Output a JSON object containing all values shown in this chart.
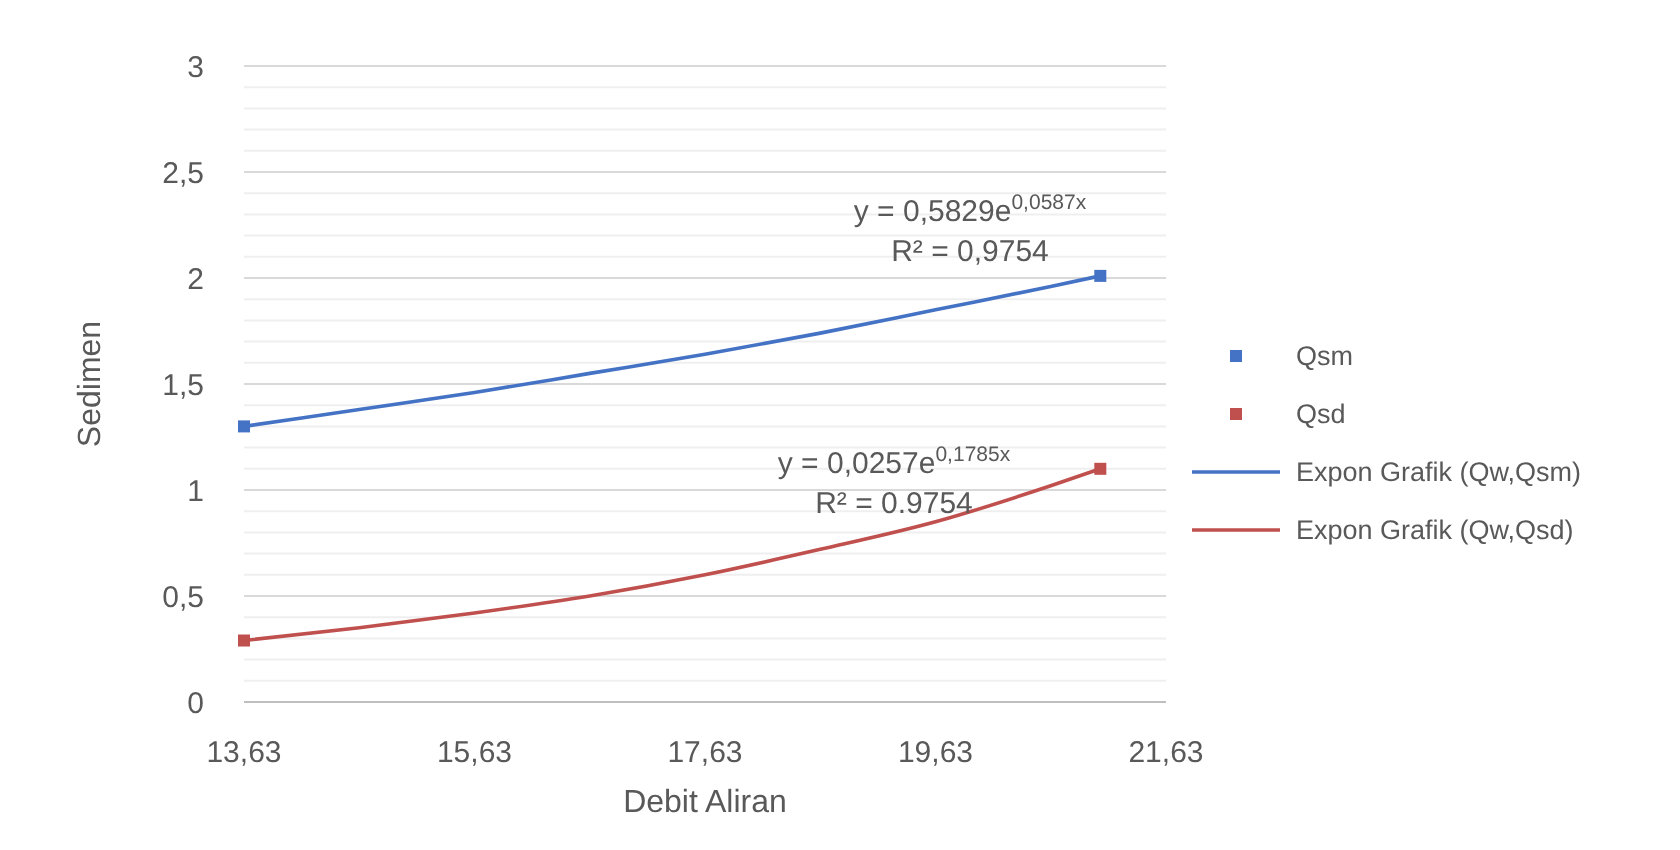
{
  "chart_data": {
    "type": "scatter",
    "xlabel": "Debit Aliran",
    "ylabel": "Sedimen",
    "xlim": [
      13.63,
      21.63
    ],
    "xticks": [
      {
        "value": 13.63,
        "label": "13,63"
      },
      {
        "value": 15.63,
        "label": "15,63"
      },
      {
        "value": 17.63,
        "label": "17,63"
      },
      {
        "value": 19.63,
        "label": "19,63"
      },
      {
        "value": 21.63,
        "label": "21,63"
      }
    ],
    "ylim": [
      0,
      3
    ],
    "yticks": [
      0,
      {
        "value": 0.1,
        "label": null
      },
      {
        "value": 0.2,
        "label": null
      },
      {
        "value": 0.3,
        "label": null
      },
      {
        "value": 0.4,
        "label": null
      },
      {
        "value": 0.5,
        "label": "0,5"
      },
      {
        "value": 0.6,
        "label": null
      },
      {
        "value": 0.7,
        "label": null
      },
      {
        "value": 0.8,
        "label": null
      },
      {
        "value": 0.9,
        "label": null
      },
      1,
      {
        "value": 1.1,
        "label": null
      },
      {
        "value": 1.2,
        "label": null
      },
      {
        "value": 1.3,
        "label": null
      },
      {
        "value": 1.4,
        "label": null
      },
      {
        "value": 1.5,
        "label": "1,5"
      },
      {
        "value": 1.6,
        "label": null
      },
      {
        "value": 1.7,
        "label": null
      },
      {
        "value": 1.8,
        "label": null
      },
      {
        "value": 1.9,
        "label": null
      },
      2,
      {
        "value": 2.1,
        "label": null
      },
      {
        "value": 2.2,
        "label": null
      },
      {
        "value": 2.3,
        "label": null
      },
      {
        "value": 2.4,
        "label": null
      },
      {
        "value": 2.5,
        "label": "2,5"
      },
      {
        "value": 2.6,
        "label": null
      },
      {
        "value": 2.7,
        "label": null
      },
      {
        "value": 2.8,
        "label": null
      },
      {
        "value": 2.9,
        "label": null
      },
      3
    ],
    "grid": "y",
    "legend": "right",
    "series": [
      {
        "name": "Qsm",
        "marker": "square",
        "color": "#4472c4",
        "x": [
          13.63,
          21.06
        ],
        "values": [
          1.3,
          2.01
        ]
      },
      {
        "name": "Qsd",
        "marker": "square",
        "color": "#c0504d",
        "x": [
          13.63,
          21.06
        ],
        "values": [
          0.29,
          1.1
        ]
      },
      {
        "name": "Expon Grafik (Qw,Qsm)",
        "type": "line",
        "marker": "none",
        "line_style": "solid",
        "color": "#4472c4",
        "x": [
          13.63,
          14.63,
          15.63,
          16.63,
          17.63,
          18.63,
          19.63,
          20.63,
          21.06
        ],
        "values": [
          1.3,
          1.38,
          1.46,
          1.55,
          1.64,
          1.74,
          1.85,
          1.96,
          2.01
        ]
      },
      {
        "name": "Expon Grafik (Qw,Qsd)",
        "type": "line",
        "marker": "none",
        "line_style": "solid",
        "color": "#c0504d",
        "x": [
          13.63,
          14.63,
          15.63,
          16.63,
          17.63,
          18.63,
          19.63,
          20.63,
          21.06
        ],
        "values": [
          0.29,
          0.35,
          0.42,
          0.5,
          0.6,
          0.72,
          0.85,
          1.02,
          1.1
        ]
      }
    ],
    "annotations": [
      "y = 0,5829e$^{0,0587x}$",
      "R² = 0,9754",
      "y = 0,0257e$^{0,1785x}$",
      "R² = 0.9754"
    ]
  }
}
